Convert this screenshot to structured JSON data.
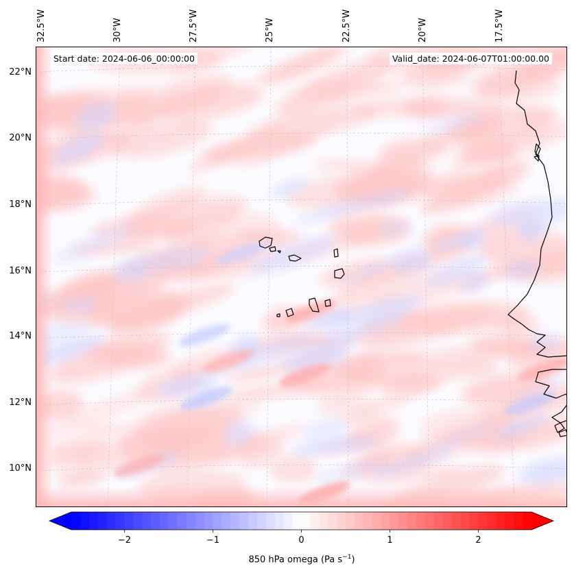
{
  "header": {
    "start_date": "Start date: 2024-06-06_00:00:00",
    "valid_date": "Valid_date: 2024-06-07T01:00:00.00"
  },
  "map": {
    "variable": "850 hPa omega",
    "lat_labels": [
      "22°N",
      "20°N",
      "18°N",
      "16°N",
      "14°N",
      "12°N",
      "10°N"
    ],
    "lon_labels": [
      "32.5°W",
      "30°W",
      "27.5°W",
      "25°W",
      "22.5°W",
      "20°W",
      "17.5°W"
    ],
    "extent": {
      "lon_min": -32.8,
      "lon_max": -15.6,
      "lat_min": 8.9,
      "lat_max": 22.8
    },
    "coastline_color": "#000000",
    "gridline_color": "#c8c8c8"
  },
  "colorbar": {
    "label_main": "850 hPa omega (Pa s",
    "label_exp": "−1",
    "label_close": ")",
    "ticks": [
      {
        "value": -2,
        "label": "−2"
      },
      {
        "value": -1,
        "label": "−1"
      },
      {
        "value": 0,
        "label": "0"
      },
      {
        "value": 1,
        "label": "1"
      },
      {
        "value": 2,
        "label": "2"
      }
    ],
    "range": [
      -2.6,
      2.6
    ],
    "colors": {
      "negative": "#0000ff",
      "neutral": "#ffffff",
      "positive": "#ff0000"
    }
  }
}
